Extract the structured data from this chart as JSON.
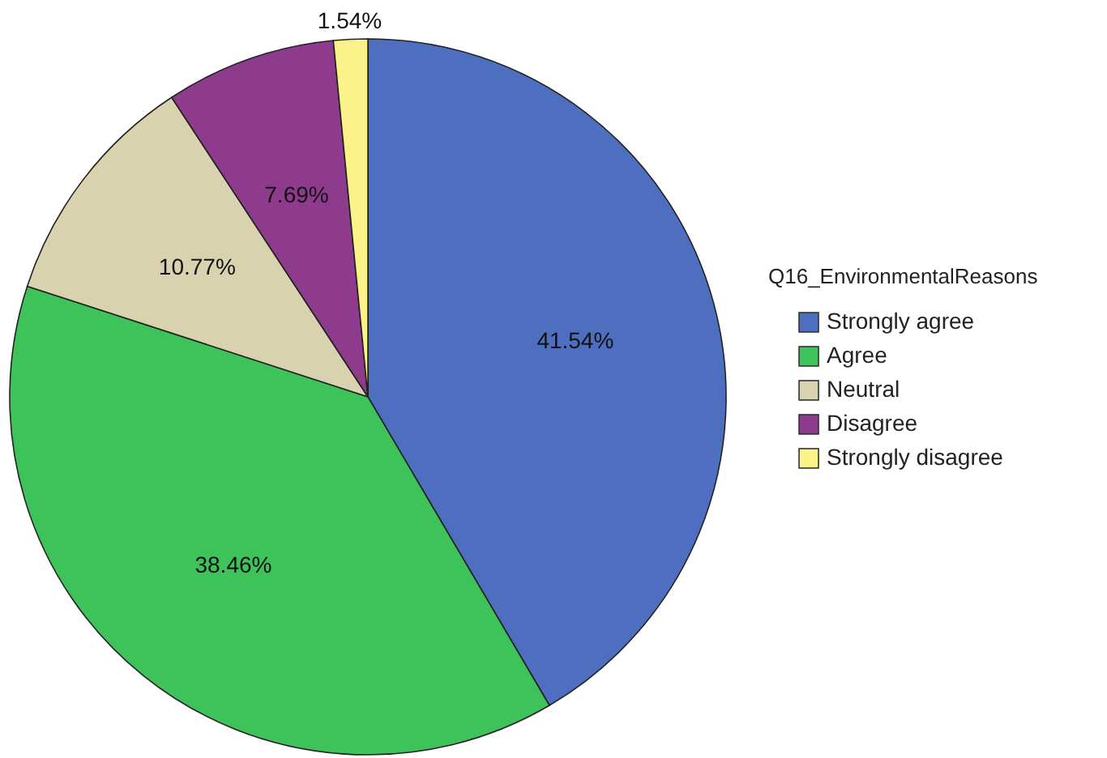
{
  "chart_data": {
    "type": "pie",
    "legend_title": "Q16_EnvironmentalReasons",
    "legend": "right",
    "categories": [
      "Strongly agree",
      "Agree",
      "Neutral",
      "Disagree",
      "Strongly disagree"
    ],
    "values": [
      41.54,
      38.46,
      10.77,
      7.69,
      1.54
    ],
    "colors": [
      "#4e6fbf",
      "#3ec25a",
      "#d8d2ae",
      "#8e3b8e",
      "#fbf38a"
    ],
    "value_labels": [
      "41.54%",
      "38.46%",
      "10.77%",
      "7.69%",
      "1.54%"
    ]
  }
}
